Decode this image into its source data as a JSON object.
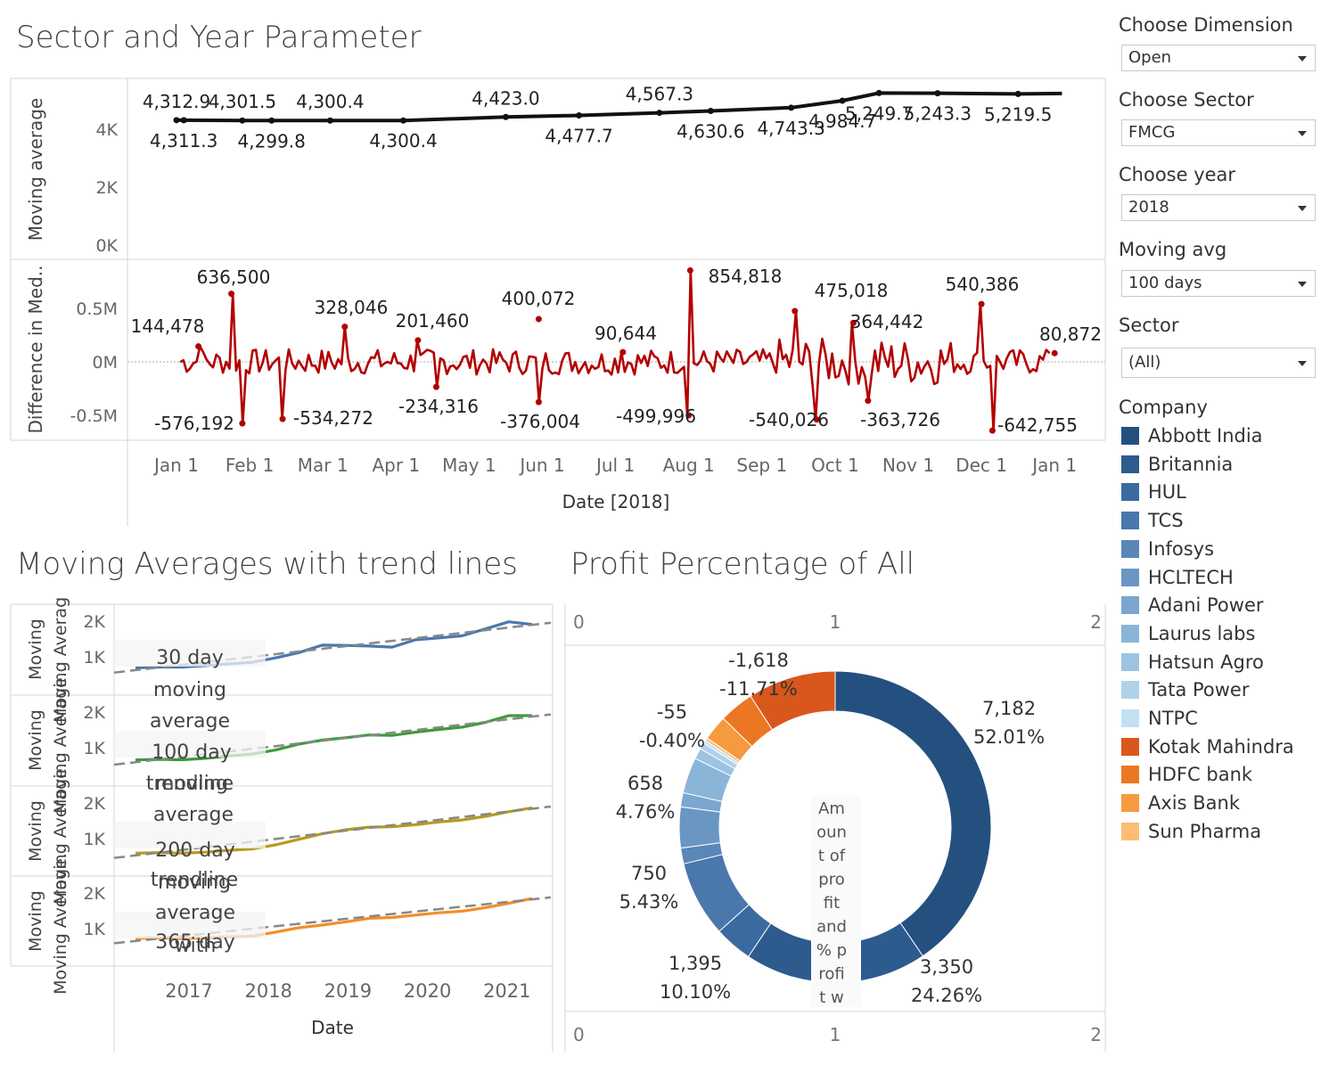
{
  "titles": {
    "top": "Sector and Year Parameter",
    "moving": "Moving Averages with trend lines",
    "profit": "Profit Percentage  of All"
  },
  "sidebar": {
    "dimension": {
      "label": "Choose Dimension",
      "value": "Open"
    },
    "sector": {
      "label": "Choose Sector",
      "value": "FMCG"
    },
    "year": {
      "label": "Choose year",
      "value": "2018"
    },
    "moving_avg": {
      "label": "Moving avg",
      "value": "100 days"
    },
    "sector_filter": {
      "label": "Sector",
      "value": "(All)"
    },
    "company_legend": {
      "title": "Company",
      "items": [
        {
          "label": "Abbott India",
          "color": "#24507f"
        },
        {
          "label": "Britannia",
          "color": "#2d5b8e"
        },
        {
          "label": "HUL",
          "color": "#3b6aa0"
        },
        {
          "label": "TCS",
          "color": "#4a78ad"
        },
        {
          "label": "Infosys",
          "color": "#5a87b8"
        },
        {
          "label": "HCLTECH",
          "color": "#6a96c4"
        },
        {
          "label": "Adani Power",
          "color": "#7aa6cf"
        },
        {
          "label": "Laurus labs",
          "color": "#8ab5d9"
        },
        {
          "label": "Hatsun Agro",
          "color": "#9cc4e2"
        },
        {
          "label": "Tata Power",
          "color": "#afd2ea"
        },
        {
          "label": "NTPC",
          "color": "#c3e0f2"
        },
        {
          "label": "Kotak Mahindra",
          "color": "#d9561c"
        },
        {
          "label": "HDFC bank",
          "color": "#ec7722"
        },
        {
          "label": "Axis Bank",
          "color": "#f59a3e"
        },
        {
          "label": "Sun Pharma",
          "color": "#fbbd73"
        }
      ]
    }
  },
  "chart_data": [
    {
      "type": "line",
      "ylabel": "Moving average",
      "yticks": [
        "4K",
        "2K",
        "0K"
      ],
      "ylim": [
        0,
        5200
      ],
      "xlabel": "Date [2018]",
      "xticks": [
        "Jan 1",
        "Feb 1",
        "Mar 1",
        "Apr 1",
        "May 1",
        "Jun 1",
        "Jul 1",
        "Aug 1",
        "Sep 1",
        "Oct 1",
        "Nov 1",
        "Dec 1",
        "Jan 1"
      ],
      "x": [
        0,
        0.1,
        0.9,
        1.3,
        2.1,
        3.1,
        4.5,
        5.5,
        6.6,
        7.3,
        8.4,
        9.1,
        9.6,
        10.4,
        11.5,
        12.1
      ],
      "values": [
        4312.9,
        4311.3,
        4301.5,
        4299.8,
        4300.4,
        4300.4,
        4423.0,
        4477.7,
        4567.3,
        4630.6,
        4743.3,
        4984.7,
        5249.7,
        5243.3,
        5219.5,
        5235
      ],
      "data_labels": [
        {
          "text": "4,312.9",
          "i": 0,
          "pos": "above"
        },
        {
          "text": "4,311.3",
          "i": 1,
          "pos": "below"
        },
        {
          "text": "4,301.5",
          "i": 2,
          "pos": "above"
        },
        {
          "text": "4,299.8",
          "i": 3,
          "pos": "below"
        },
        {
          "text": "4,300.4",
          "i": 4,
          "pos": "above"
        },
        {
          "text": "4,300.4",
          "i": 5,
          "pos": "below"
        },
        {
          "text": "4,423.0",
          "i": 6,
          "pos": "above"
        },
        {
          "text": "4,477.7",
          "i": 7,
          "pos": "below"
        },
        {
          "text": "4,567.3",
          "i": 8,
          "pos": "above"
        },
        {
          "text": "4,630.6",
          "i": 9,
          "pos": "below"
        },
        {
          "text": "4,743.3",
          "i": 10,
          "pos": "below"
        },
        {
          "text": "4,984.7",
          "i": 11,
          "pos": "below"
        },
        {
          "text": "5,249.7",
          "i": 12,
          "pos": "below"
        },
        {
          "text": "5,243.3",
          "i": 13,
          "pos": "below"
        },
        {
          "text": "5,219.5",
          "i": 14,
          "pos": "below"
        }
      ],
      "color": "#111111"
    },
    {
      "type": "line",
      "ylabel": "Difference in Med..",
      "yticks": [
        "0.5M",
        "0M",
        "-0.5M"
      ],
      "ylim": [
        -0.65,
        0.85
      ],
      "color": "#b30000",
      "annotations": [
        {
          "text": "636,500",
          "x": 0.75,
          "value": 636500
        },
        {
          "text": "144,478",
          "x": 0.3,
          "value": 144478
        },
        {
          "text": "-576,192",
          "x": 0.9,
          "value": -576192
        },
        {
          "text": "328,046",
          "x": 2.3,
          "value": 328046
        },
        {
          "text": "-534,272",
          "x": 1.45,
          "value": -534272
        },
        {
          "text": "201,460",
          "x": 3.3,
          "value": 201460
        },
        {
          "text": "-234,316",
          "x": 3.55,
          "value": -234316
        },
        {
          "text": "400,072",
          "x": 4.95,
          "value": 400072
        },
        {
          "text": "-376,004",
          "x": 4.95,
          "value": -376004
        },
        {
          "text": "90,644",
          "x": 6.1,
          "value": 90644
        },
        {
          "text": "-499,996",
          "x": 7.0,
          "value": -499996
        },
        {
          "text": "854,818",
          "x": 7.02,
          "value": 854818
        },
        {
          "text": "475,018",
          "x": 8.45,
          "value": 475018
        },
        {
          "text": "-540,026",
          "x": 8.75,
          "value": -540026
        },
        {
          "text": "364,442",
          "x": 9.25,
          "value": 364442
        },
        {
          "text": "-363,726",
          "x": 9.45,
          "value": -363726
        },
        {
          "text": "540,386",
          "x": 11.0,
          "value": 540386
        },
        {
          "text": "-642,755",
          "x": 11.15,
          "value": -642755
        },
        {
          "text": "80,872",
          "x": 12.0,
          "value": 80872
        }
      ]
    },
    {
      "type": "line",
      "xlabel": "Date",
      "xticks": [
        "2017",
        "2018",
        "2019",
        "2020",
        "2021"
      ],
      "panels": [
        {
          "ylabel": "Moving Average..",
          "yticks": [
            "2K",
            "1K"
          ],
          "series_label": "30 day moving average",
          "color": "#4a78ad",
          "values": [
            1030,
            1040,
            1060,
            1085,
            1120,
            1180,
            1280,
            1440,
            1570,
            1580,
            1620,
            1560,
            1700,
            1790,
            1880,
            2000,
            2160,
            2150
          ]
        },
        {
          "ylabel": "Moving Average..",
          "yticks": [
            "2K",
            "1K"
          ],
          "series_label": "100 day moving average with trendline",
          "color": "#3d9a3a",
          "values": [
            1000,
            1005,
            1015,
            1040,
            1090,
            1160,
            1250,
            1390,
            1510,
            1560,
            1620,
            1630,
            1700,
            1760,
            1840,
            1950,
            2110,
            2130
          ]
        },
        {
          "ylabel": "Moving Average..",
          "yticks": [
            "2K",
            "1K"
          ],
          "series_label": "200 day moving average with trendline",
          "color": "#b89a20",
          "values": [
            940,
            945,
            950,
            965,
            1000,
            1060,
            1150,
            1280,
            1440,
            1530,
            1590,
            1620,
            1660,
            1720,
            1790,
            1870,
            1980,
            2100
          ]
        },
        {
          "ylabel": "Moving Average..",
          "yticks": [
            "2K",
            "1K"
          ],
          "series_label": "365 day moving average with trendline",
          "color": "#f28e2b",
          "values": [
            1060,
            1065,
            1070,
            1080,
            1090,
            1130,
            1220,
            1320,
            1410,
            1480,
            1560,
            1600,
            1650,
            1700,
            1760,
            1840,
            1940,
            2080
          ]
        }
      ],
      "trend": "dashed gray linear trend line per panel"
    },
    {
      "type": "pie",
      "variant": "donut",
      "axis_ticks": [
        "0",
        "1",
        "2"
      ],
      "center_label": "Amount of profit and % profit w",
      "slices": [
        {
          "label": "Abbott India",
          "value": 7182,
          "pct": "52.01%",
          "color": "#24507f"
        },
        {
          "label": "Britannia",
          "value": 3350,
          "pct": "24.26%",
          "color": "#2d5b8e"
        },
        {
          "label": "HUL",
          "value": 700,
          "pct": "5.07%",
          "color": "#3b6aa0"
        },
        {
          "label": "TCS",
          "value": 1395,
          "pct": "10.10%",
          "color": "#4a78ad"
        },
        {
          "label": "Infosys",
          "value": 290,
          "pct": "2.10%",
          "color": "#5a87b8"
        },
        {
          "label": "HCLTECH",
          "value": 750,
          "pct": "5.43%",
          "color": "#6a96c4"
        },
        {
          "label": "Adani Power",
          "value": 260,
          "pct": "1.88%",
          "color": "#7aa6cf"
        },
        {
          "label": "Laurus labs",
          "value": 658,
          "pct": "4.76%",
          "color": "#8ab5d9"
        },
        {
          "label": "Hatsun Agro",
          "value": 200,
          "pct": "1.45%",
          "color": "#9cc4e2"
        },
        {
          "label": "Tata Power",
          "value": 120,
          "pct": "0.87%",
          "color": "#afd2ea"
        },
        {
          "label": "NTPC",
          "value": 55,
          "pct": "0.40%",
          "color": "#c3e0f2"
        },
        {
          "label": "Sun Pharma",
          "value": -55,
          "pct": "-0.40%",
          "color": "#fbbd73"
        },
        {
          "label": "Axis Bank",
          "value": -460,
          "pct": "-3.33%",
          "color": "#f59a3e"
        },
        {
          "label": "HDFC bank",
          "value": -640,
          "pct": "-4.63%",
          "color": "#ec7722"
        },
        {
          "label": "Kotak Mahindra",
          "value": -1618,
          "pct": "-11.71%",
          "color": "#d9561c"
        }
      ],
      "visible_labels": [
        {
          "value": "7,182",
          "pct": "52.01%"
        },
        {
          "value": "3,350",
          "pct": "24.26%"
        },
        {
          "value": "1,395",
          "pct": "10.10%"
        },
        {
          "value": "750",
          "pct": "5.43%"
        },
        {
          "value": "658",
          "pct": "4.76%"
        },
        {
          "value": "-55",
          "pct": "-0.40%"
        },
        {
          "value": "-1,618",
          "pct": "-11.71%"
        }
      ]
    }
  ]
}
